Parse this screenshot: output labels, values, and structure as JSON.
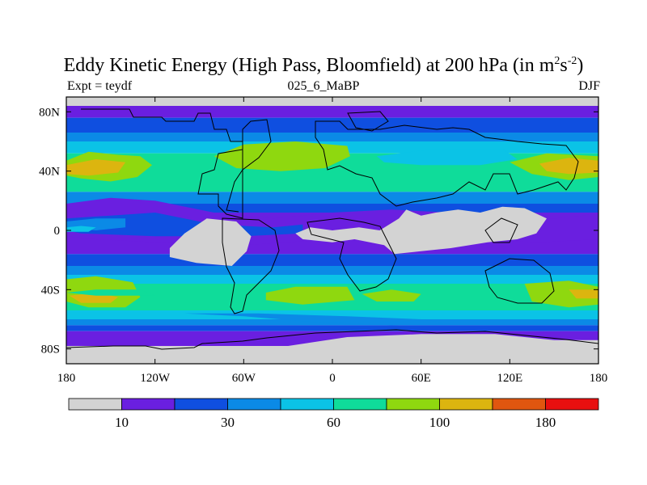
{
  "chart_data": {
    "type": "heatmap",
    "title": "Eddy Kinetic Energy (High Pass, Bloomfield) at 200 hPa (in m",
    "title_units_sup1": "2",
    "title_units_mid": "s",
    "title_units_sup2": "-2",
    "title_units_end": ")",
    "subtitle_left": "Expt = teydf",
    "subtitle_center": "025_6_MaBP",
    "subtitle_right": "DJF",
    "x_range": [
      -180,
      180
    ],
    "y_range": [
      -90,
      90
    ],
    "x_ticks": [
      {
        "value": -180,
        "label": "180"
      },
      {
        "value": -120,
        "label": "120W"
      },
      {
        "value": -60,
        "label": "60W"
      },
      {
        "value": 0,
        "label": "0"
      },
      {
        "value": 60,
        "label": "60E"
      },
      {
        "value": 120,
        "label": "120E"
      },
      {
        "value": 180,
        "label": "180"
      }
    ],
    "y_ticks": [
      {
        "value": 80,
        "label": "80N"
      },
      {
        "value": 40,
        "label": "40N"
      },
      {
        "value": 0,
        "label": "0"
      },
      {
        "value": -40,
        "label": "40S"
      },
      {
        "value": -80,
        "label": "80S"
      }
    ],
    "colorbar": {
      "colors": [
        "#d3d3d3",
        "#6a1fe0",
        "#0f4fe0",
        "#0b8ae6",
        "#0bc3e6",
        "#0fdc9a",
        "#8fd80f",
        "#dcb50f",
        "#e0560f",
        "#e80f0f"
      ],
      "labels": [
        {
          "index": 1,
          "label": "10"
        },
        {
          "index": 3,
          "label": "30"
        },
        {
          "index": 5,
          "label": "60"
        },
        {
          "index": 7,
          "label": "100"
        },
        {
          "index": 9,
          "label": "180"
        }
      ]
    },
    "bands": [
      {
        "lat": [
          84,
          90
        ],
        "level": 0
      },
      {
        "lat": [
          76,
          84
        ],
        "level": 1
      },
      {
        "lat": [
          66,
          76
        ],
        "level": 2
      },
      {
        "lat": [
          60,
          66
        ],
        "level": 3
      },
      {
        "lat": [
          52,
          60
        ],
        "level": 4
      },
      {
        "lat": [
          26,
          52
        ],
        "level": 5
      },
      {
        "lat": [
          18,
          26
        ],
        "level": 3
      },
      {
        "lat": [
          12,
          18
        ],
        "level": 2
      },
      {
        "lat": [
          -16,
          12
        ],
        "level": 1
      },
      {
        "lat": [
          -24,
          -16
        ],
        "level": 2
      },
      {
        "lat": [
          -30,
          -24
        ],
        "level": 3
      },
      {
        "lat": [
          -36,
          -30
        ],
        "level": 4
      },
      {
        "lat": [
          -54,
          -36
        ],
        "level": 5
      },
      {
        "lat": [
          -60,
          -54
        ],
        "level": 4
      },
      {
        "lat": [
          -64,
          -60
        ],
        "level": 3
      },
      {
        "lat": [
          -68,
          -64
        ],
        "level": 2
      },
      {
        "lat": [
          -78,
          -68
        ],
        "level": 1
      },
      {
        "lat": [
          -90,
          -78
        ],
        "level": 0
      }
    ],
    "blobs": [
      {
        "points": [
          [
            -180,
            47
          ],
          [
            -165,
            53
          ],
          [
            -145,
            51
          ],
          [
            -130,
            50
          ],
          [
            -122,
            44
          ],
          [
            -132,
            36
          ],
          [
            -150,
            33
          ],
          [
            -170,
            35
          ],
          [
            -180,
            37
          ]
        ],
        "level": 6
      },
      {
        "points": [
          [
            -180,
            44
          ],
          [
            -160,
            48
          ],
          [
            -140,
            46
          ],
          [
            -145,
            39
          ],
          [
            -165,
            37
          ],
          [
            -180,
            38
          ]
        ],
        "level": 7
      },
      {
        "points": [
          [
            -80,
            50
          ],
          [
            -60,
            58
          ],
          [
            -25,
            60
          ],
          [
            10,
            57
          ],
          [
            12,
            50
          ],
          [
            -5,
            42
          ],
          [
            -35,
            40
          ],
          [
            -65,
            42
          ]
        ],
        "level": 6
      },
      {
        "points": [
          [
            30,
            50
          ],
          [
            70,
            55
          ],
          [
            115,
            55
          ],
          [
            125,
            48
          ],
          [
            100,
            44
          ],
          [
            60,
            44
          ],
          [
            35,
            46
          ]
        ],
        "level": 4
      },
      {
        "points": [
          [
            120,
            46
          ],
          [
            145,
            52
          ],
          [
            180,
            50
          ],
          [
            180,
            36
          ],
          [
            160,
            34
          ],
          [
            135,
            38
          ]
        ],
        "level": 6
      },
      {
        "points": [
          [
            140,
            45
          ],
          [
            160,
            49
          ],
          [
            180,
            47
          ],
          [
            180,
            39
          ],
          [
            160,
            38
          ],
          [
            145,
            40
          ]
        ],
        "level": 7
      },
      {
        "points": [
          [
            -180,
            -33
          ],
          [
            -160,
            -31
          ],
          [
            -135,
            -35
          ],
          [
            -130,
            -45
          ],
          [
            -140,
            -52
          ],
          [
            -165,
            -52
          ],
          [
            -180,
            -48
          ]
        ],
        "level": 6
      },
      {
        "points": [
          [
            -178,
            -44
          ],
          [
            -160,
            -42
          ],
          [
            -145,
            -45
          ],
          [
            -150,
            -49
          ],
          [
            -170,
            -49
          ]
        ],
        "level": 7
      },
      {
        "points": [
          [
            -45,
            -42
          ],
          [
            -25,
            -38
          ],
          [
            10,
            -38
          ],
          [
            15,
            -47
          ],
          [
            -20,
            -50
          ],
          [
            -45,
            -47
          ]
        ],
        "level": 6
      },
      {
        "points": [
          [
            20,
            -43
          ],
          [
            40,
            -40
          ],
          [
            60,
            -43
          ],
          [
            55,
            -48
          ],
          [
            30,
            -48
          ]
        ],
        "level": 6
      },
      {
        "points": [
          [
            130,
            -36
          ],
          [
            160,
            -34
          ],
          [
            180,
            -38
          ],
          [
            180,
            -50
          ],
          [
            160,
            -52
          ],
          [
            135,
            -48
          ]
        ],
        "level": 6
      },
      {
        "points": [
          [
            160,
            -40
          ],
          [
            180,
            -40
          ],
          [
            180,
            -46
          ],
          [
            165,
            -46
          ]
        ],
        "level": 7
      },
      {
        "points": [
          [
            -180,
            18
          ],
          [
            -150,
            22
          ],
          [
            -120,
            20
          ],
          [
            -80,
            12
          ],
          [
            -40,
            8
          ],
          [
            0,
            12
          ],
          [
            40,
            14
          ],
          [
            80,
            12
          ],
          [
            130,
            6
          ],
          [
            170,
            10
          ],
          [
            180,
            12
          ],
          [
            180,
            -6
          ],
          [
            140,
            -8
          ],
          [
            90,
            -6
          ],
          [
            40,
            -8
          ],
          [
            0,
            -6
          ],
          [
            -60,
            -10
          ],
          [
            -120,
            -8
          ],
          [
            -160,
            -6
          ],
          [
            -180,
            -4
          ]
        ],
        "level": 1
      },
      {
        "points": [
          [
            -180,
            8
          ],
          [
            -150,
            10
          ],
          [
            -120,
            12
          ],
          [
            -80,
            4
          ],
          [
            -40,
            2
          ],
          [
            -20,
            4
          ],
          [
            -20,
            -2
          ],
          [
            -60,
            -4
          ],
          [
            -120,
            -4
          ],
          [
            -170,
            -2
          ],
          [
            -180,
            0
          ]
        ],
        "level": 2
      },
      {
        "points": [
          [
            -180,
            6
          ],
          [
            -160,
            8
          ],
          [
            -140,
            8
          ],
          [
            -140,
            2
          ],
          [
            -160,
            0
          ],
          [
            -180,
            2
          ]
        ],
        "level": 3
      },
      {
        "points": [
          [
            -180,
            2
          ],
          [
            -170,
            3
          ],
          [
            -160,
            2
          ],
          [
            -165,
            -1
          ],
          [
            -180,
            -1
          ]
        ],
        "level": 4
      },
      {
        "points": [
          [
            -180,
            -42
          ],
          [
            -160,
            -44
          ],
          [
            -120,
            -44
          ],
          [
            -130,
            -40
          ],
          [
            -160,
            -40
          ]
        ],
        "level": 5
      },
      {
        "points": [
          [
            -100,
            -56
          ],
          [
            -60,
            -58
          ],
          [
            -10,
            -62
          ],
          [
            40,
            -64
          ],
          [
            80,
            -63
          ],
          [
            60,
            -60
          ],
          [
            10,
            -58
          ],
          [
            -50,
            -56
          ]
        ],
        "level": 3
      }
    ],
    "masks": [
      {
        "points": [
          [
            -180,
            90
          ],
          [
            -70,
            90
          ],
          [
            -75,
            85
          ],
          [
            -90,
            84
          ],
          [
            -130,
            84
          ],
          [
            -175,
            85
          ],
          [
            -180,
            85
          ]
        ],
        "level": 0
      },
      {
        "points": [
          [
            -40,
            86
          ],
          [
            0,
            84
          ],
          [
            60,
            85
          ],
          [
            120,
            88
          ],
          [
            180,
            86
          ],
          [
            180,
            90
          ],
          [
            -40,
            90
          ]
        ],
        "level": 0
      },
      {
        "points": [
          [
            -100,
            -2
          ],
          [
            -85,
            8
          ],
          [
            -65,
            6
          ],
          [
            -55,
            -4
          ],
          [
            -58,
            -14
          ],
          [
            -68,
            -24
          ],
          [
            -92,
            -22
          ],
          [
            -110,
            -18
          ],
          [
            -110,
            -12
          ]
        ],
        "level": 0
      },
      {
        "points": [
          [
            -25,
            -2
          ],
          [
            -15,
            2
          ],
          [
            0,
            0
          ],
          [
            18,
            2
          ],
          [
            32,
            0
          ],
          [
            45,
            8
          ],
          [
            50,
            14
          ],
          [
            60,
            10
          ],
          [
            70,
            12
          ],
          [
            85,
            14
          ],
          [
            100,
            12
          ],
          [
            115,
            16
          ],
          [
            130,
            15
          ],
          [
            145,
            8
          ],
          [
            138,
            -2
          ],
          [
            125,
            -6
          ],
          [
            105,
            -8
          ],
          [
            80,
            -12
          ],
          [
            60,
            -14
          ],
          [
            42,
            -16
          ],
          [
            35,
            -10
          ],
          [
            15,
            -6
          ],
          [
            0,
            -8
          ],
          [
            -20,
            -6
          ]
        ],
        "level": 0
      },
      {
        "points": [
          [
            -180,
            -80
          ],
          [
            -130,
            -80
          ],
          [
            -95,
            -78
          ],
          [
            -60,
            -80
          ],
          [
            -30,
            -78
          ],
          [
            10,
            -72
          ],
          [
            60,
            -70
          ],
          [
            110,
            -70
          ],
          [
            150,
            -74
          ],
          [
            180,
            -74
          ],
          [
            180,
            -90
          ],
          [
            -180,
            -90
          ]
        ],
        "level": 0
      }
    ]
  }
}
